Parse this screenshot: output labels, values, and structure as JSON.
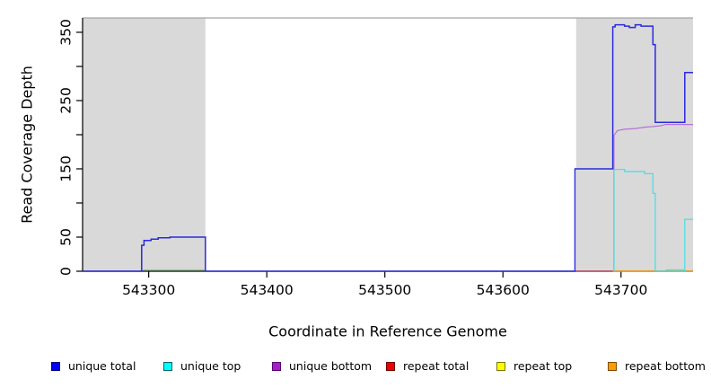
{
  "figure": {
    "xlabel": "Coordinate in Reference Genome",
    "ylabel": "Read Coverage Depth"
  },
  "legend": {
    "items": [
      {
        "label": "unique total",
        "fill": "#0000f0",
        "border": "#000080"
      },
      {
        "label": "unique top",
        "fill": "#00ffff",
        "border": "#006666"
      },
      {
        "label": "unique bottom",
        "fill": "#a020cc",
        "border": "#58006e"
      },
      {
        "label": "repeat total",
        "fill": "#ee0000",
        "border": "#6e0000"
      },
      {
        "label": "repeat top",
        "fill": "#ffff00",
        "border": "#7a7a00"
      },
      {
        "label": "repeat bottom",
        "fill": "#ff9d00",
        "border": "#7a4d00"
      }
    ]
  },
  "chart_data": {
    "type": "line",
    "title": "",
    "xlabel": "Coordinate in Reference Genome",
    "ylabel": "Read Coverage Depth",
    "xlim": [
      543244,
      543761
    ],
    "ylim": [
      0,
      371
    ],
    "x_ticks": [
      543300,
      543400,
      543500,
      543600,
      543700
    ],
    "y_ticks": [
      0,
      50,
      100,
      150,
      200,
      250,
      300,
      350
    ],
    "y_tick_labels": [
      {
        "value": 0,
        "label": "0"
      },
      {
        "value": 50,
        "label": "50"
      },
      {
        "value": 150,
        "label": "150"
      },
      {
        "value": 250,
        "label": "250"
      },
      {
        "value": 350,
        "label": "350"
      }
    ],
    "grid": false,
    "legend_position": "bottom",
    "shade_color": "#d9d9d9",
    "shaded_regions": [
      {
        "x0": 543244,
        "x1": 543348
      },
      {
        "x0": 543662,
        "x1": 543761
      }
    ],
    "series": [
      {
        "name": "repeat total",
        "color": "#cc3358",
        "width": 1.2,
        "points": [
          [
            543661,
            0
          ],
          [
            543694,
            0
          ]
        ]
      },
      {
        "name": "repeat bottom",
        "color": "#ff9800",
        "width": 1.4,
        "points": [
          [
            543693,
            0
          ],
          [
            543761,
            0
          ]
        ]
      },
      {
        "name": "green (no legend entry)",
        "color": "#8fcf8f",
        "width": 1.2,
        "points": [
          [
            543295,
            2
          ],
          [
            543348,
            2
          ]
        ]
      },
      {
        "name": "green (no legend entry) right",
        "color": "#8fcf8f",
        "width": 1.2,
        "points": [
          [
            543738,
            2
          ],
          [
            543754,
            2
          ]
        ]
      },
      {
        "name": "unique bottom",
        "color": "#b672d6",
        "width": 1.2,
        "points": [
          [
            543694,
            0
          ],
          [
            543694,
            199
          ],
          [
            543697,
            206
          ],
          [
            543703,
            208
          ],
          [
            543712,
            209
          ],
          [
            543720,
            211
          ],
          [
            543727,
            212
          ],
          [
            543733,
            213
          ],
          [
            543738,
            215
          ],
          [
            543761,
            215
          ]
        ]
      },
      {
        "name": "unique top",
        "color": "#44dde4",
        "width": 1.2,
        "points": [
          [
            543694,
            0
          ],
          [
            543694,
            149
          ],
          [
            543703,
            149
          ],
          [
            543703,
            146
          ],
          [
            543720,
            146
          ],
          [
            543720,
            143
          ],
          [
            543727,
            143
          ],
          [
            543727,
            114
          ],
          [
            543729,
            114
          ],
          [
            543729,
            0
          ],
          [
            543754,
            0
          ],
          [
            543754,
            76
          ],
          [
            543761,
            76
          ]
        ]
      },
      {
        "name": "unique total",
        "color": "#2a2ae0",
        "width": 1.5,
        "points": [
          [
            543244,
            0
          ],
          [
            543294,
            0
          ],
          [
            543294,
            38
          ],
          [
            543296,
            38
          ],
          [
            543296,
            45
          ],
          [
            543302,
            45
          ],
          [
            543302,
            47
          ],
          [
            543308,
            47
          ],
          [
            543308,
            49
          ],
          [
            543318,
            49
          ],
          [
            543318,
            50
          ],
          [
            543348,
            50
          ],
          [
            543348,
            0
          ],
          [
            543661,
            0
          ],
          [
            543661,
            150
          ],
          [
            543693,
            150
          ],
          [
            543693,
            358
          ],
          [
            543695,
            358
          ],
          [
            543695,
            361
          ],
          [
            543703,
            361
          ],
          [
            543703,
            359
          ],
          [
            543707,
            359
          ],
          [
            543707,
            357
          ],
          [
            543712,
            357
          ],
          [
            543712,
            361
          ],
          [
            543717,
            361
          ],
          [
            543717,
            359
          ],
          [
            543727,
            359
          ],
          [
            543727,
            332
          ],
          [
            543729,
            332
          ],
          [
            543729,
            218
          ],
          [
            543754,
            218
          ],
          [
            543754,
            291
          ],
          [
            543761,
            291
          ]
        ]
      }
    ]
  }
}
